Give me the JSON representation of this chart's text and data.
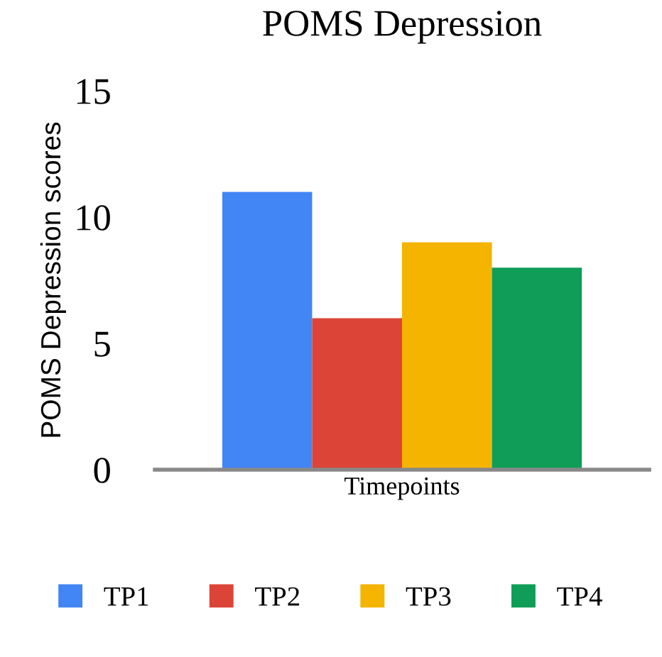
{
  "chart_data": {
    "type": "bar",
    "title": "POMS Depression",
    "ylabel": "POMS Depression scores",
    "xlabel": "Timepoints",
    "categories": [
      null
    ],
    "series": [
      {
        "name": "TP1",
        "color": "#4285f4",
        "values": [
          11
        ]
      },
      {
        "name": "TP2",
        "color": "#db4437",
        "values": [
          6
        ]
      },
      {
        "name": "TP3",
        "color": "#f4b400",
        "values": [
          9
        ]
      },
      {
        "name": "TP4",
        "color": "#0f9d58",
        "values": [
          8
        ]
      }
    ],
    "ylim": [
      0,
      15
    ],
    "yticks": [
      0,
      5,
      10,
      15
    ],
    "grid": false,
    "legend": "bottom"
  }
}
